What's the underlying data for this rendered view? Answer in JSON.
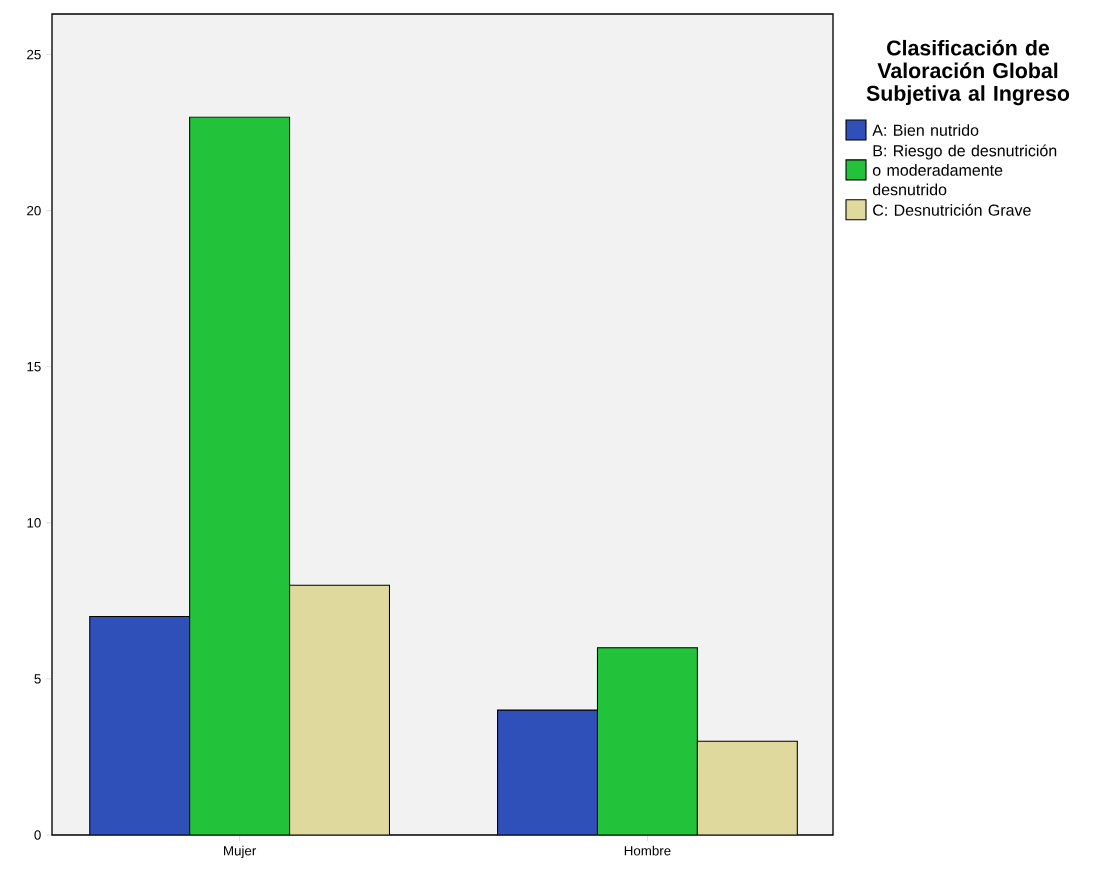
{
  "chart_data": {
    "type": "bar",
    "legend_title": "Clasificación de Valoración Global Subjetiva al Ingreso",
    "categories": [
      "Mujer",
      "Hombre"
    ],
    "series": [
      {
        "name": "A: Bien nutrido",
        "color": "#2f4fb9",
        "values": [
          7,
          4
        ]
      },
      {
        "name": "B: Riesgo de desnutrición o moderadamente desnutrido",
        "color": "#22c33a",
        "values": [
          23,
          6
        ]
      },
      {
        "name": "C: Desnutrición Grave",
        "color": "#e0d99e",
        "values": [
          8,
          3
        ]
      }
    ],
    "ylim": [
      0,
      26.3
    ],
    "yticks": [
      0,
      5,
      10,
      15,
      20,
      25
    ],
    "legend": "right"
  }
}
